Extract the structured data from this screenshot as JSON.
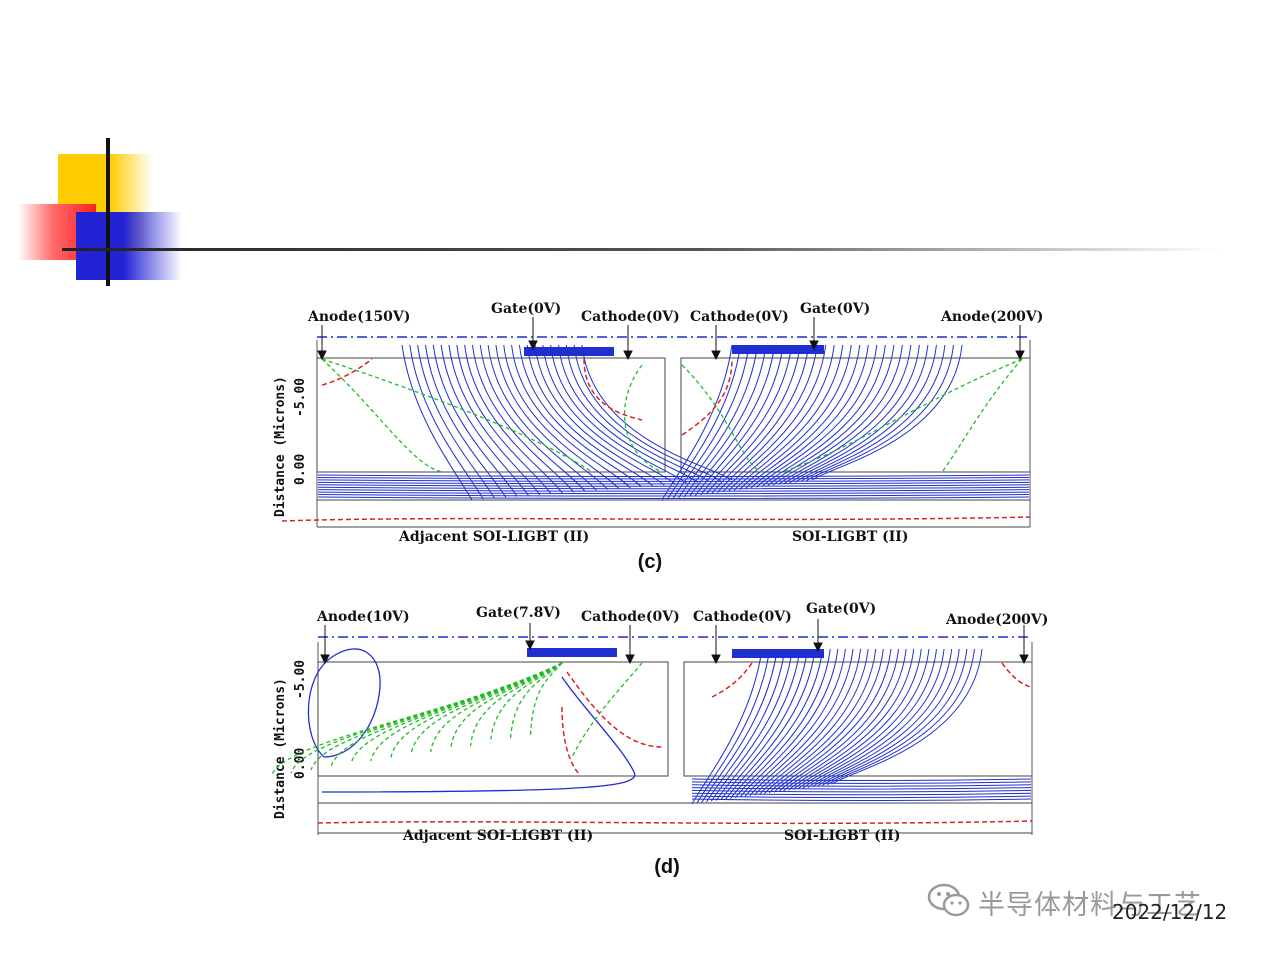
{
  "slide": {
    "date": "2022/12/12",
    "watermark": "半导体材料与工艺",
    "watermark_icon": "wechat-icon"
  },
  "panel_c": {
    "caption": "(c)",
    "y_axis_label": "Distance (Microns)",
    "y_ticks": [
      "-5.00",
      "0.00"
    ],
    "left_title": "Adjacent SOI-LIGBT (II)",
    "right_title": "SOI-LIGBT (II)",
    "terminals": {
      "left_anode": "Anode(150V)",
      "left_gate": "Gate(0V)",
      "left_cathode": "Cathode(0V)",
      "right_cathode": "Cathode(0V)",
      "right_gate": "Gate(0V)",
      "right_anode": "Anode(200V)"
    }
  },
  "panel_d": {
    "caption": "(d)",
    "y_axis_label": "Distance (Microns)",
    "y_ticks": [
      "-5.00",
      "0.00"
    ],
    "left_title": "Adjacent SOI-LIGBT (II)",
    "right_title": "SOI-LIGBT (II)",
    "terminals": {
      "left_anode": "Anode(10V)",
      "left_gate": "Gate(7.8V)",
      "left_cathode": "Cathode(0V)",
      "right_cathode": "Cathode(0V)",
      "right_gate": "Gate(0V)",
      "right_anode": "Anode(200V)"
    }
  },
  "colors": {
    "potential_lines": "#1f2fd0",
    "current_lines": "#22bb22",
    "junction_lines": "#e02020",
    "depletion_edge": "#333333",
    "accent_yellow": "#ffcc00",
    "accent_red": "#ff2020",
    "accent_blue": "#2323d6"
  }
}
